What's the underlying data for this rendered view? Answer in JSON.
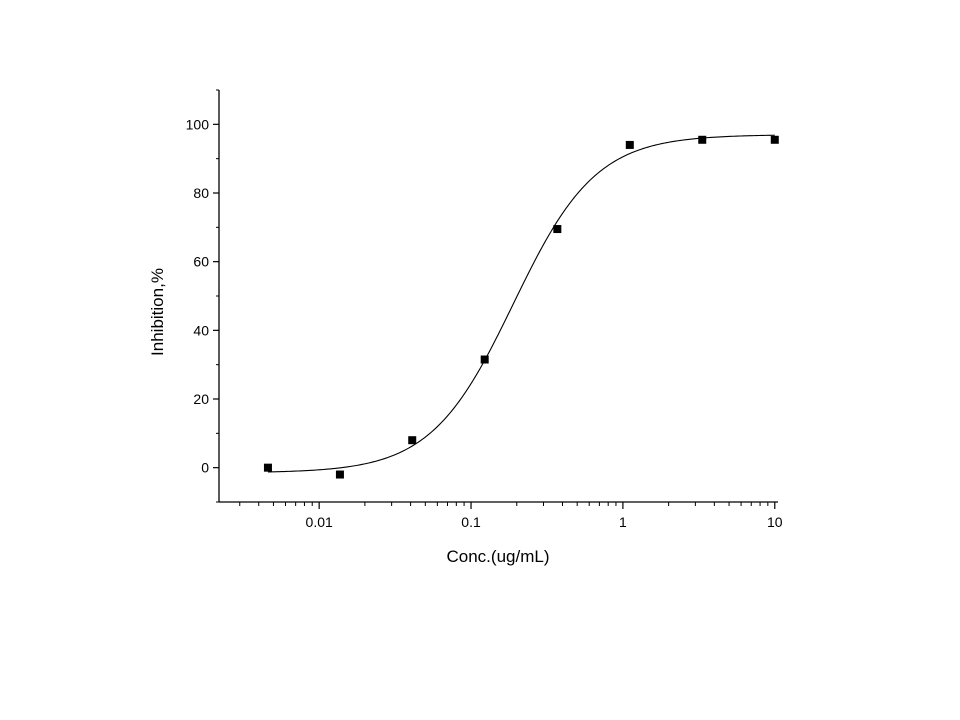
{
  "chart_data": {
    "type": "scatter",
    "xlabel": "Conc.(ug/mL)",
    "ylabel": "Inhibition,%",
    "xscale": "log",
    "xlim": [
      0.00219,
      10.5
    ],
    "ylim": [
      -10,
      110
    ],
    "grid": false,
    "legend": "none",
    "x_ticks": [
      {
        "value": 0.01,
        "label": "0.01"
      },
      {
        "value": 0.1,
        "label": "0.1"
      },
      {
        "value": 1,
        "label": "1"
      },
      {
        "value": 10,
        "label": "10"
      }
    ],
    "y_ticks": [
      {
        "value": 0,
        "label": "0"
      },
      {
        "value": 20,
        "label": "20"
      },
      {
        "value": 40,
        "label": "40"
      },
      {
        "value": 60,
        "label": "60"
      },
      {
        "value": 80,
        "label": "80"
      },
      {
        "value": 100,
        "label": "100"
      }
    ],
    "series": [
      {
        "kind": "points",
        "marker": "square",
        "color": "#000000",
        "x": [
          0.0046,
          0.0137,
          0.041,
          0.123,
          0.37,
          1.11,
          3.33,
          10
        ],
        "y": [
          0,
          -2,
          8,
          31.5,
          69.5,
          94,
          95.5,
          95.5
        ]
      },
      {
        "kind": "fit-curve",
        "model": "4PL",
        "color": "#000000",
        "bottom": -1.5,
        "top": 97,
        "ec50": 0.19,
        "hill": 1.6,
        "x_range": [
          0.0046,
          10
        ]
      }
    ]
  }
}
